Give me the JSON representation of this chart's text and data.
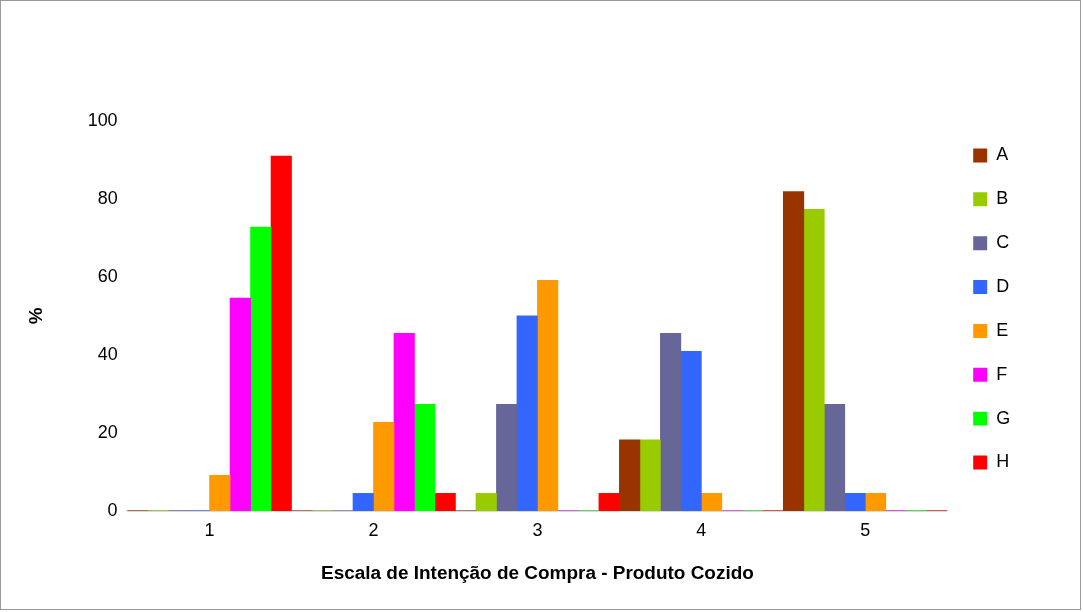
{
  "chart_data": {
    "type": "bar",
    "xlabel": "Escala de Intenção de Compra - Produto Cozido",
    "ylabel": "%",
    "categories": [
      "1",
      "2",
      "3",
      "4",
      "5"
    ],
    "series": [
      {
        "name": "A",
        "color": "#993300",
        "values": [
          0,
          0,
          0,
          18.2,
          81.8
        ]
      },
      {
        "name": "B",
        "color": "#99cc00",
        "values": [
          0,
          0,
          4.5,
          18.2,
          77.3
        ]
      },
      {
        "name": "C",
        "color": "#666699",
        "values": [
          0,
          0,
          27.3,
          45.5,
          27.3
        ]
      },
      {
        "name": "D",
        "color": "#3366ff",
        "values": [
          0,
          4.5,
          50,
          40.9,
          4.5
        ]
      },
      {
        "name": "E",
        "color": "#ff9900",
        "values": [
          9.1,
          22.7,
          59.1,
          4.5,
          4.5
        ]
      },
      {
        "name": "F",
        "color": "#ff00ff",
        "values": [
          54.5,
          45.5,
          0,
          0,
          0
        ]
      },
      {
        "name": "G",
        "color": "#00ff00",
        "values": [
          72.7,
          27.3,
          0,
          0,
          0
        ]
      },
      {
        "name": "H",
        "color": "#ff0000",
        "values": [
          90.9,
          4.5,
          4.5,
          0,
          0
        ]
      }
    ],
    "ylim": [
      0,
      100
    ],
    "yticks": [
      0,
      20,
      40,
      60,
      80,
      100
    ],
    "grid": false,
    "legend": "right"
  }
}
